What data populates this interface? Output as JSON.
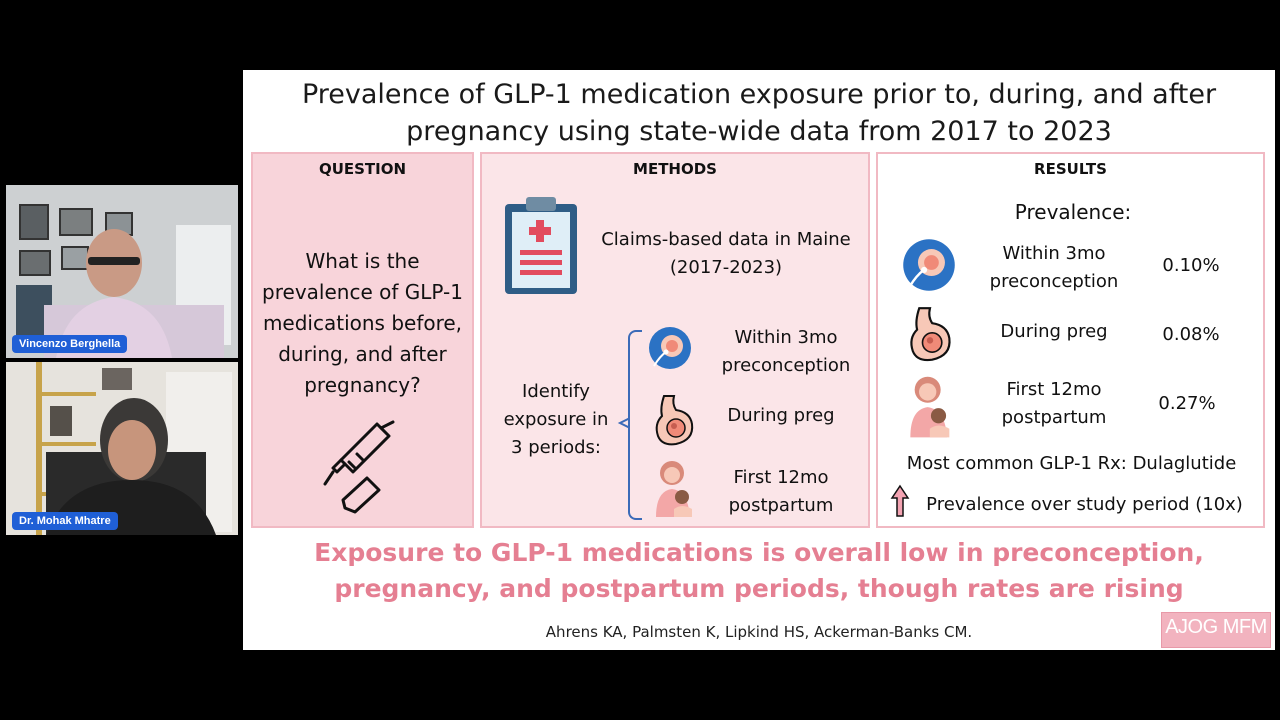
{
  "participants": [
    {
      "name": "Vincenzo Berghella"
    },
    {
      "name": "Dr. Mohak Mhatre"
    }
  ],
  "slide": {
    "title_line1": "Prevalence of GLP-1 medication exposure prior to, during, and after",
    "title_line2": "pregnancy using state-wide data from 2017 to 2023",
    "question": {
      "heading": "QUESTION",
      "lines": [
        "What is the",
        "prevalence of GLP-1",
        "medications before,",
        "during, and after",
        "pregnancy?"
      ]
    },
    "methods": {
      "heading": "METHODS",
      "data_line1": "Claims-based data in Maine",
      "data_line2": "(2017-2023)",
      "identify_lines": [
        "Identify",
        "exposure in",
        "3 periods:"
      ],
      "periods": [
        {
          "line1": "Within 3mo",
          "line2": "preconception"
        },
        {
          "line1": "During preg",
          "line2": ""
        },
        {
          "line1": "First 12mo",
          "line2": "postpartum"
        }
      ]
    },
    "results": {
      "heading": "RESULTS",
      "prevalence_label": "Prevalence:",
      "rows": [
        {
          "line1": "Within 3mo",
          "line2": "preconception",
          "value": "0.10%"
        },
        {
          "line1": "During preg",
          "line2": "",
          "value": "0.08%"
        },
        {
          "line1": "First 12mo",
          "line2": "postpartum",
          "value": "0.27%"
        }
      ],
      "most_common": "Most common GLP-1 Rx: Dulaglutide",
      "trend": "Prevalence over study period (10x)"
    },
    "conclusion_line1": "Exposure to GLP-1 medications is overall low in preconception,",
    "conclusion_line2": "pregnancy, and postpartum periods, though rates are rising",
    "authors": "Ahrens KA, Palmsten K, Lipkind HS, Ackerman-Banks CM.",
    "logo": "AJOG MFM"
  },
  "colors": {
    "accent_pink": "#e57f92",
    "panel_border": "#f1b9c3",
    "badge_blue": "#1f5fd6"
  }
}
